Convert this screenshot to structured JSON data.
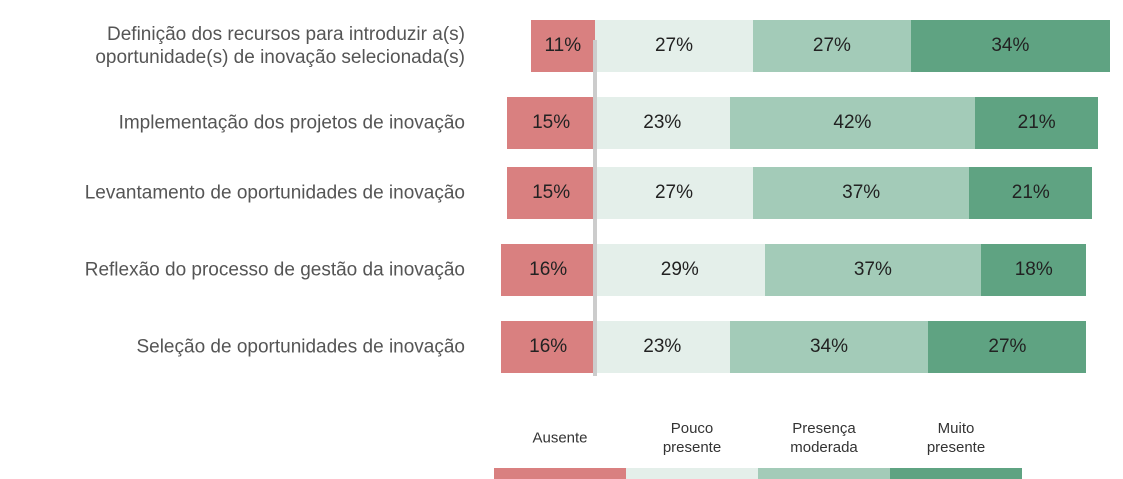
{
  "chart_data": {
    "type": "diverging_bar",
    "categories": [
      "Definição dos recursos para introduzir a(s)\noportunidade(s) de inovação selecionada(s)",
      "Implementação dos projetos de inovação",
      "Levantamento de oportunidades de inovação",
      "Reflexão do processo de gestão da inovação",
      "Seleção de oportunidades de inovação"
    ],
    "series": [
      {
        "name": "Ausente",
        "color": "#d98080",
        "side": "left",
        "values": [
          11,
          15,
          15,
          16,
          16
        ],
        "value_labels": [
          "11%",
          "15%",
          "15%",
          "16%",
          "16%"
        ]
      },
      {
        "name": "Pouco\npresente",
        "color": "#e4efea",
        "side": "right",
        "values": [
          27,
          23,
          27,
          29,
          23
        ],
        "value_labels": [
          "27%",
          "23%",
          "27%",
          "29%",
          "23%"
        ]
      },
      {
        "name": "Presença\nmoderada",
        "color": "#a3cbb8",
        "side": "right",
        "values": [
          27,
          42,
          37,
          37,
          34
        ],
        "value_labels": [
          "27%",
          "42%",
          "37%",
          "37%",
          "34%"
        ]
      },
      {
        "name": "Muito\npresente",
        "color": "#5fa382",
        "side": "right",
        "values": [
          34,
          21,
          21,
          18,
          27
        ],
        "value_labels": [
          "34%",
          "21%",
          "21%",
          "18%",
          "27%"
        ]
      }
    ]
  }
}
